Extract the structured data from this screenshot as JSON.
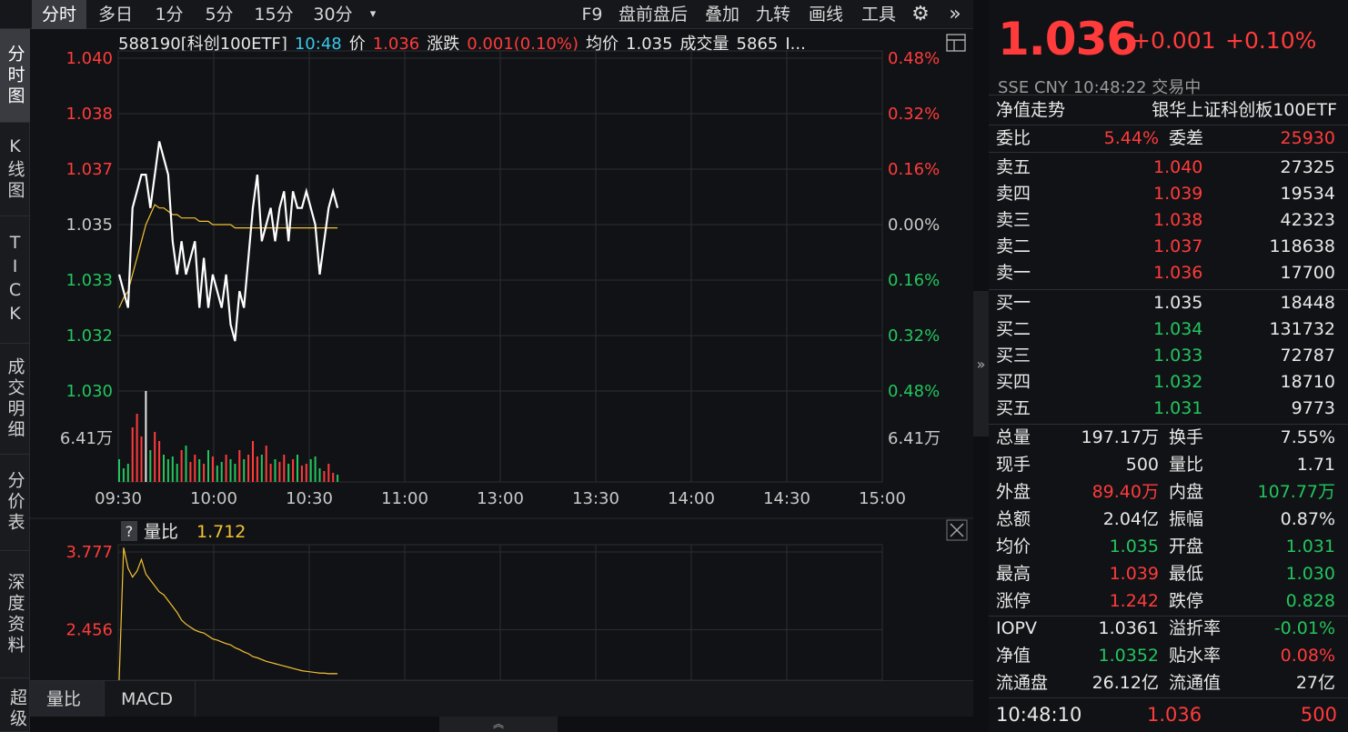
{
  "toolbar": {
    "left": [
      {
        "label": "分时",
        "active": true
      },
      {
        "label": "多日"
      },
      {
        "label": "1分"
      },
      {
        "label": "5分"
      },
      {
        "label": "15分"
      },
      {
        "label": "30分"
      }
    ],
    "dropdown_glyph": "▾",
    "right": [
      "F9",
      "盘前盘后",
      "叠加",
      "九转",
      "画线",
      "工具"
    ],
    "gear_glyph": "⚙",
    "more_glyph": "»"
  },
  "vtabs": [
    {
      "label": "分时图",
      "active": true
    },
    {
      "label": "K线图"
    },
    {
      "label": "TICK"
    },
    {
      "label": "成交明细"
    },
    {
      "label": "分价表"
    },
    {
      "label": "深度资料"
    },
    {
      "label": "超级"
    }
  ],
  "infobar": {
    "code_name": "588190[科创100ETF]",
    "time": "10:48",
    "price_label": "价",
    "price": "1.036",
    "change_label": "涨跌",
    "change": "0.001(0.10%)",
    "avg_label": "均价",
    "avg": "1.035",
    "volume_label": "成交量",
    "volume": "5865",
    "more": "I..."
  },
  "chart_data": [
    {
      "type": "line",
      "title": "",
      "xlabel": "",
      "ylabel": "",
      "x_ticks": [
        "09:30",
        "10:00",
        "10:30",
        "11:00",
        "13:00",
        "13:30",
        "14:00",
        "14:30",
        "15:00"
      ],
      "y_ticks_left": [
        "1.040",
        "1.038",
        "1.037",
        "1.035",
        "1.033",
        "1.032",
        "1.030"
      ],
      "y_ticks_right": [
        "0.48%",
        "0.32%",
        "0.16%",
        "0.00%",
        "0.16%",
        "0.32%",
        "0.48%"
      ],
      "ylim": [
        1.03,
        1.04
      ],
      "base": 1.035,
      "volume_label_left": "6.41万",
      "volume_label_right": "6.41万",
      "series": [
        {
          "kind": "price",
          "values": [
            1.0335,
            1.033,
            1.0325,
            1.0355,
            1.036,
            1.0365,
            1.0365,
            1.0355,
            1.0365,
            1.0375,
            1.037,
            1.0365,
            1.0345,
            1.0335,
            1.0345,
            1.0335,
            1.034,
            1.0345,
            1.0325,
            1.034,
            1.0325,
            1.0335,
            1.033,
            1.0325,
            1.0335,
            1.032,
            1.0315,
            1.033,
            1.0325,
            1.034,
            1.0355,
            1.0365,
            1.0345,
            1.035,
            1.0355,
            1.0345,
            1.0355,
            1.036,
            1.0345,
            1.036,
            1.0355,
            1.0355,
            1.036,
            1.0355,
            1.035,
            1.0335,
            1.0345,
            1.0355,
            1.036,
            1.0355
          ]
        },
        {
          "kind": "average",
          "values": [
            1.0325,
            1.0328,
            1.033,
            1.0335,
            1.034,
            1.0345,
            1.035,
            1.0353,
            1.0356,
            1.0355,
            1.0355,
            1.0354,
            1.0353,
            1.0353,
            1.0352,
            1.0352,
            1.0352,
            1.0352,
            1.0351,
            1.0351,
            1.0351,
            1.035,
            1.035,
            1.035,
            1.035,
            1.035,
            1.0349,
            1.0349,
            1.0349,
            1.0349,
            1.0349,
            1.0349,
            1.0349,
            1.0349,
            1.0349,
            1.0349,
            1.0349,
            1.0349,
            1.0349,
            1.0349,
            1.0349,
            1.0349,
            1.0349,
            1.0349,
            1.0349,
            1.0349,
            1.0349,
            1.0349,
            1.0349,
            1.0349
          ]
        }
      ],
      "volume": [
        0.25,
        0.15,
        0.2,
        0.6,
        0.75,
        0.5,
        1.0,
        0.35,
        0.55,
        0.45,
        0.3,
        0.25,
        0.28,
        0.2,
        0.35,
        0.4,
        0.22,
        0.3,
        0.25,
        0.2,
        0.35,
        0.28,
        0.18,
        0.22,
        0.3,
        0.25,
        0.2,
        0.35,
        0.25,
        0.3,
        0.45,
        0.28,
        0.3,
        0.4,
        0.2,
        0.25,
        0.22,
        0.3,
        0.2,
        0.25,
        0.3,
        0.18,
        0.2,
        0.25,
        0.28,
        0.15,
        0.12,
        0.2,
        0.1,
        0.08
      ]
    },
    {
      "type": "line",
      "title": "",
      "indicator_label": "量比",
      "indicator_value": "1.712",
      "y_ticks_left": [
        "3.777",
        "2.456"
      ],
      "ylim": [
        1.6,
        3.9
      ],
      "series": [
        {
          "kind": "volume_ratio",
          "values": [
            1.6,
            3.85,
            3.5,
            3.35,
            3.45,
            3.65,
            3.4,
            3.3,
            3.2,
            3.1,
            3.05,
            2.95,
            2.85,
            2.75,
            2.62,
            2.55,
            2.5,
            2.45,
            2.42,
            2.4,
            2.35,
            2.3,
            2.28,
            2.25,
            2.22,
            2.2,
            2.15,
            2.12,
            2.08,
            2.05,
            2.0,
            1.98,
            1.95,
            1.92,
            1.9,
            1.88,
            1.86,
            1.84,
            1.82,
            1.8,
            1.78,
            1.76,
            1.75,
            1.74,
            1.73,
            1.72,
            1.72,
            1.71,
            1.712,
            1.71
          ]
        }
      ]
    }
  ],
  "btabs": [
    {
      "label": "量比",
      "active": true
    },
    {
      "label": "MACD"
    }
  ],
  "panel": {
    "price": "1.036",
    "change": "+0.001",
    "pct": "+0.10%",
    "meta": "SSE  CNY  10:48:22  交易中",
    "nav_trend": "净值走势",
    "fund_name": "银华上证科创板100ETF",
    "weibi_label": "委比",
    "weibi": "5.44%",
    "weicha_label": "委差",
    "weicha": "25930",
    "asks": [
      {
        "label": "卖五",
        "price": "1.040",
        "vol": "27325"
      },
      {
        "label": "卖四",
        "price": "1.039",
        "vol": "19534"
      },
      {
        "label": "卖三",
        "price": "1.038",
        "vol": "42323"
      },
      {
        "label": "卖二",
        "price": "1.037",
        "vol": "118638"
      },
      {
        "label": "卖一",
        "price": "1.036",
        "vol": "17700"
      }
    ],
    "bids": [
      {
        "label": "买一",
        "price": "1.035",
        "vol": "18448"
      },
      {
        "label": "买二",
        "price": "1.034",
        "vol": "131732"
      },
      {
        "label": "买三",
        "price": "1.033",
        "vol": "72787"
      },
      {
        "label": "买四",
        "price": "1.032",
        "vol": "18710"
      },
      {
        "label": "买五",
        "price": "1.031",
        "vol": "9773"
      }
    ],
    "stats": [
      {
        "l1": "总量",
        "v1": "197.17万",
        "c1": "white",
        "l2": "换手",
        "v2": "7.55%",
        "c2": "white"
      },
      {
        "l1": "现手",
        "v1": "500",
        "c1": "white",
        "l2": "量比",
        "v2": "1.71",
        "c2": "white"
      },
      {
        "l1": "外盘",
        "v1": "89.40万",
        "c1": "up",
        "l2": "内盘",
        "v2": "107.77万",
        "c2": "down"
      },
      {
        "l1": "总额",
        "v1": "2.04亿",
        "c1": "white",
        "l2": "振幅",
        "v2": "0.87%",
        "c2": "white"
      },
      {
        "l1": "均价",
        "v1": "1.035",
        "c1": "down",
        "l2": "开盘",
        "v2": "1.031",
        "c2": "down"
      },
      {
        "l1": "最高",
        "v1": "1.039",
        "c1": "up",
        "l2": "最低",
        "v2": "1.030",
        "c2": "down"
      },
      {
        "l1": "涨停",
        "v1": "1.242",
        "c1": "up",
        "l2": "跌停",
        "v2": "0.828",
        "c2": "down"
      }
    ],
    "stats2": [
      {
        "l1": "IOPV",
        "v1": "1.0361",
        "c1": "white",
        "l2": "溢折率",
        "v2": "-0.01%",
        "c2": "down"
      },
      {
        "l1": "净值",
        "v1": "1.0352",
        "c1": "down",
        "l2": "贴水率",
        "v2": "0.08%",
        "c2": "up"
      },
      {
        "l1": "流通盘",
        "v1": "26.12亿",
        "c1": "white",
        "l2": "流通值",
        "v2": "27亿",
        "c2": "white"
      }
    ],
    "last_tick": {
      "time": "10:48:10",
      "price": "1.036",
      "vol": "500"
    }
  },
  "colors": {
    "up": "#ff3b3b",
    "down": "#22c55e",
    "price_line": "#ffffff",
    "avg_line": "#f3c234",
    "ratio_line": "#f3c234",
    "grid": "#2c2d33"
  }
}
